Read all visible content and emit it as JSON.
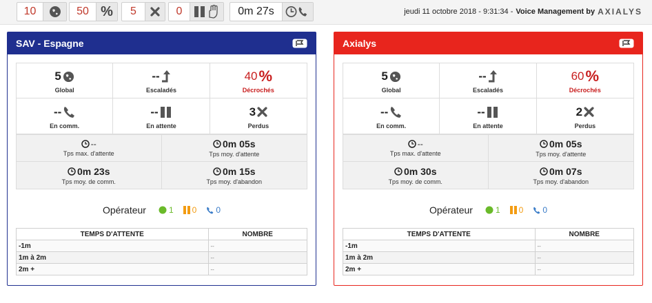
{
  "topbar": {
    "kpis": [
      {
        "value": "10",
        "icon": "globe-icon"
      },
      {
        "value": "50",
        "icon": "percent-icon"
      },
      {
        "value": "5",
        "icon": "close-icon"
      },
      {
        "value": "0",
        "icon": "pause-hand-icon"
      },
      {
        "value": "0m 27s",
        "icon": "clock-phone-icon"
      }
    ],
    "datetime": "jeudi 11 octobre 2018 - 9:31:34 -",
    "brand_prefix": "Voice Management by",
    "brand": "AXIALYS"
  },
  "colors": {
    "blue": "#1f2f8f",
    "red": "#e8251d",
    "green": "#6aba2a",
    "orange": "#f39c12"
  },
  "panels": [
    {
      "title": "SAV - Espagne",
      "stats": {
        "global": "5",
        "global_label": "Global",
        "escalades": "--",
        "escalades_label": "Escaladés",
        "decroches": "40",
        "decroches_label": "Décrochés",
        "encomm": "--",
        "encomm_label": "En comm.",
        "attente": "--",
        "attente_label": "En attente",
        "perdus": "3",
        "perdus_label": "Perdus"
      },
      "times": {
        "max_attente": "--",
        "max_attente_label": "Tps max. d'attente",
        "moy_attente": "0m 05s",
        "moy_attente_label": "Tps moy. d'attente",
        "moy_comm": "0m 23s",
        "moy_comm_label": "Tps moy. de comm.",
        "moy_abandon": "0m 15s",
        "moy_abandon_label": "Tps moy. d'abandon"
      },
      "operators": {
        "label": "Opérateur",
        "available": "1",
        "paused": "0",
        "oncall": "0"
      },
      "table": {
        "headers": [
          "TEMPS D'ATTENTE",
          "NOMBRE"
        ],
        "rows": [
          [
            "-1m",
            "--"
          ],
          [
            "1m à 2m",
            "--"
          ],
          [
            "2m +",
            "--"
          ]
        ]
      }
    },
    {
      "title": "Axialys",
      "stats": {
        "global": "5",
        "global_label": "Global",
        "escalades": "--",
        "escalades_label": "Escaladés",
        "decroches": "60",
        "decroches_label": "Décrochés",
        "encomm": "--",
        "encomm_label": "En comm.",
        "attente": "--",
        "attente_label": "En attente",
        "perdus": "2",
        "perdus_label": "Perdus"
      },
      "times": {
        "max_attente": "--",
        "max_attente_label": "Tps max. d'attente",
        "moy_attente": "0m 05s",
        "moy_attente_label": "Tps moy. d'attente",
        "moy_comm": "0m 30s",
        "moy_comm_label": "Tps moy. de comm.",
        "moy_abandon": "0m 07s",
        "moy_abandon_label": "Tps moy. d'abandon"
      },
      "operators": {
        "label": "Opérateur",
        "available": "1",
        "paused": "0",
        "oncall": "0"
      },
      "table": {
        "headers": [
          "TEMPS D'ATTENTE",
          "NOMBRE"
        ],
        "rows": [
          [
            "-1m",
            "--"
          ],
          [
            "1m à 2m",
            "--"
          ],
          [
            "2m +",
            "--"
          ]
        ]
      }
    }
  ]
}
